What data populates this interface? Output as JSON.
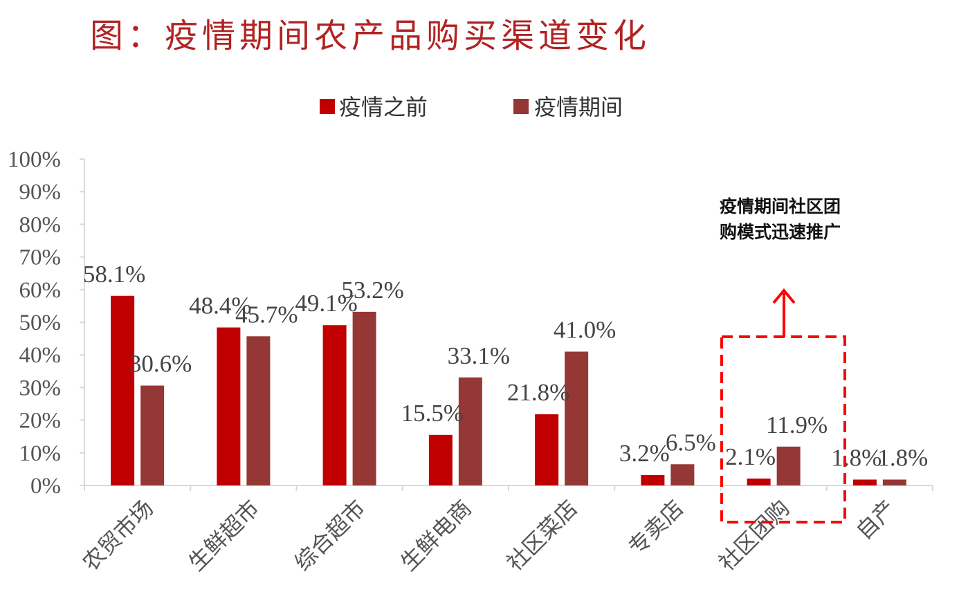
{
  "title": "图：疫情期间农产品购买渠道变化",
  "colors": {
    "series_before": "#c00000",
    "series_during": "#953735",
    "title": "#b22222",
    "annotation": "#ff0000"
  },
  "chart_data": {
    "type": "bar",
    "title": "图：疫情期间农产品购买渠道变化",
    "categories": [
      "农贸市场",
      "生鲜超市",
      "综合超市",
      "生鲜电商",
      "社区菜店",
      "专卖店",
      "社区团购",
      "自产"
    ],
    "series": [
      {
        "name": "疫情之前",
        "values": [
          58.1,
          48.4,
          49.1,
          15.5,
          21.8,
          3.2,
          2.1,
          1.8
        ],
        "labels": [
          "58.1%",
          "48.4%",
          "49.1%",
          "15.5%",
          "21.8%",
          "3.2%",
          "2.1%",
          "1.8%"
        ]
      },
      {
        "name": "疫情期间",
        "values": [
          30.6,
          45.7,
          53.2,
          33.1,
          41.0,
          6.5,
          11.9,
          1.8
        ],
        "labels": [
          "30.6%",
          "45.7%",
          "53.2%",
          "33.1%",
          "41.0%",
          "6.5%",
          "11.9%",
          "1.8%"
        ]
      }
    ],
    "ylim": [
      0,
      100
    ],
    "yticks": [
      "0%",
      "10%",
      "20%",
      "30%",
      "40%",
      "50%",
      "60%",
      "70%",
      "80%",
      "90%",
      "100%"
    ],
    "legend_position": "top-center",
    "grid": false,
    "annotation": {
      "lines": [
        "疫情期间社区团",
        "购模式迅速推广"
      ],
      "highlight_category": "社区团购"
    }
  }
}
